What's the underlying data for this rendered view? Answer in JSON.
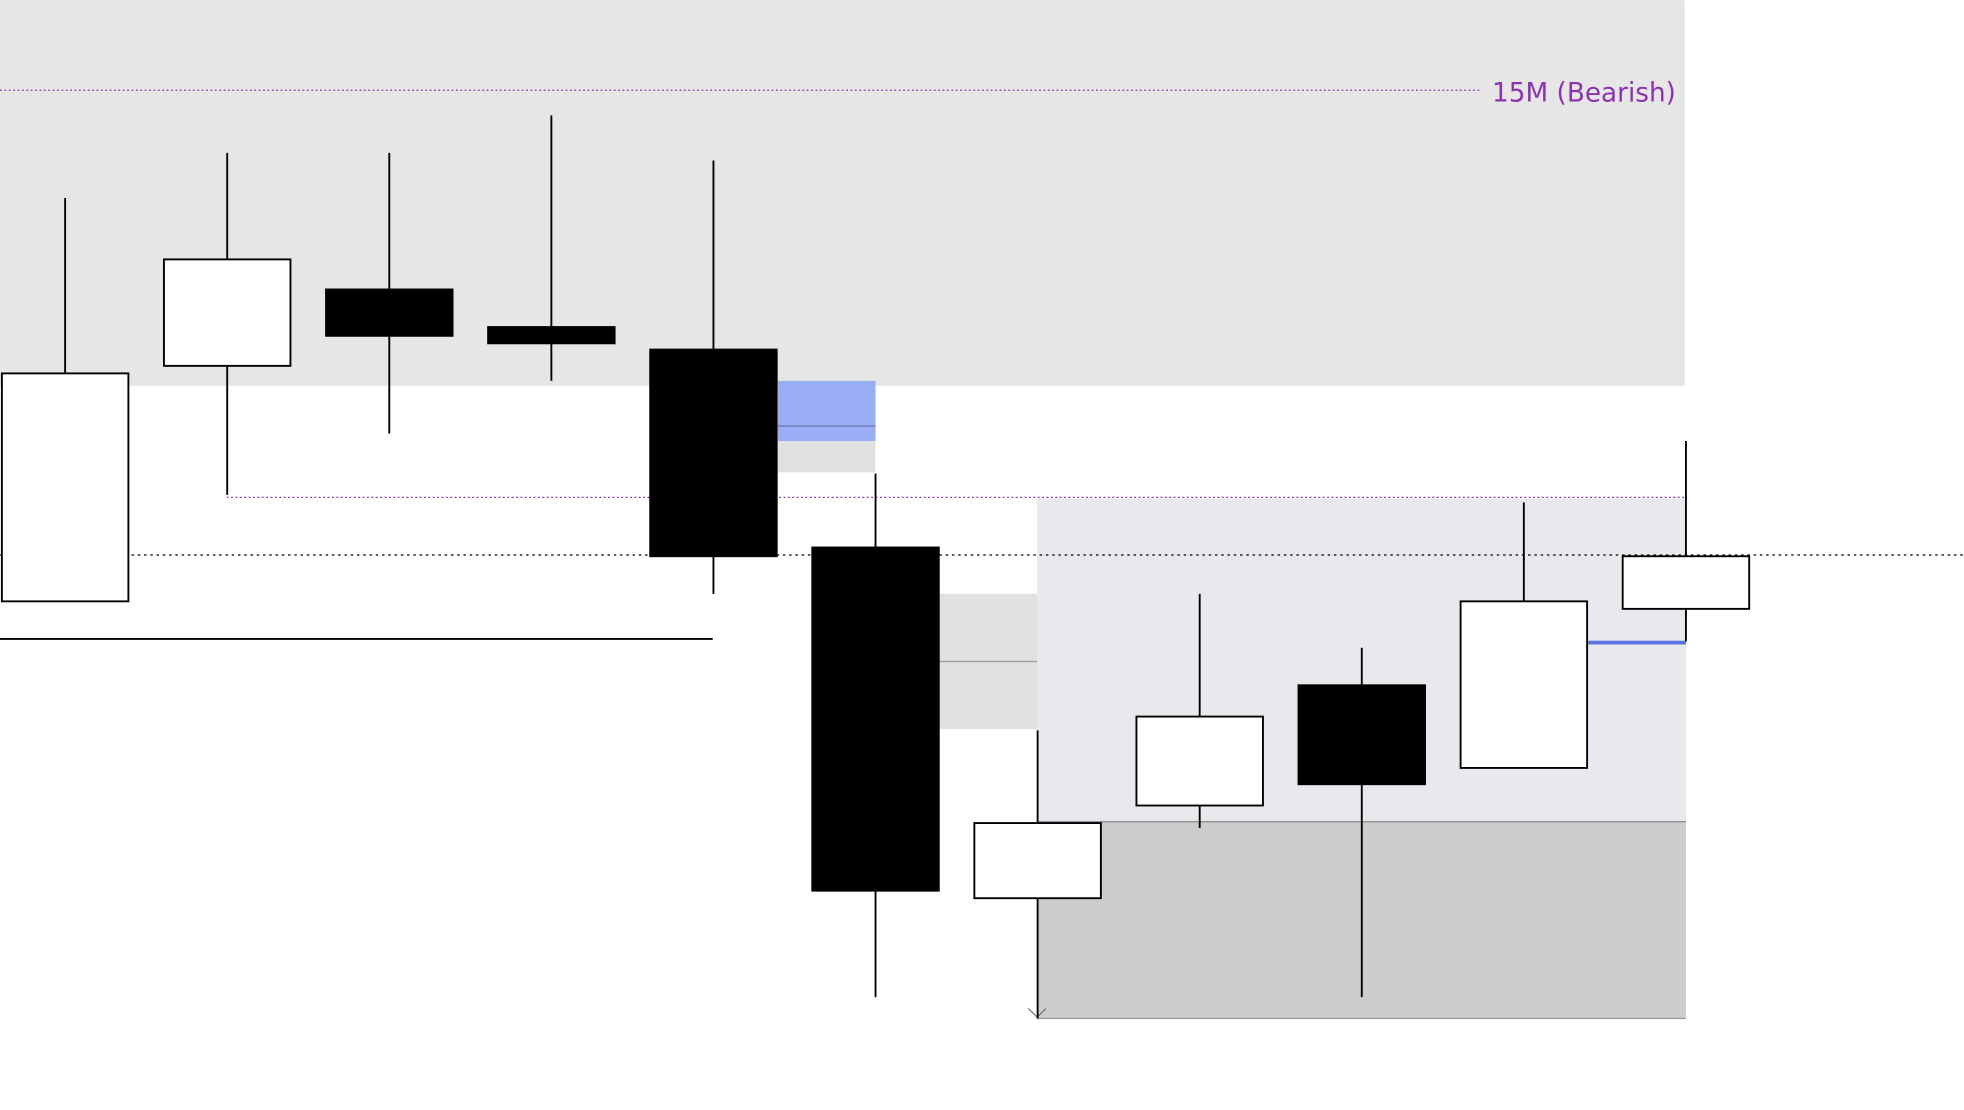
{
  "chart_data": {
    "type": "candlestick",
    "annotation": "15M (Bearish)",
    "ylim": [
      0,
      886
    ],
    "up_color": "#ffffff",
    "down_color": "#000000",
    "candles": [
      {
        "open": 406,
        "high": 728,
        "low": 406,
        "close": 588
      },
      {
        "open": 594,
        "high": 764,
        "low": 491,
        "close": 679
      },
      {
        "open": 655,
        "high": 764,
        "low": 540,
        "close": 618
      },
      {
        "open": 625,
        "high": 794,
        "low": 582,
        "close": 612
      },
      {
        "open": 607,
        "high": 758,
        "low": 412,
        "close": 442
      },
      {
        "open": 449,
        "high": 508,
        "low": 90,
        "close": 175
      },
      {
        "open": 169,
        "high": 303,
        "low": 73,
        "close": 229
      },
      {
        "open": 243,
        "high": 412,
        "low": 225,
        "close": 314
      },
      {
        "open": 339,
        "high": 369,
        "low": 90,
        "close": 260
      },
      {
        "open": 273,
        "high": 485,
        "low": 273,
        "close": 406
      },
      {
        "open": 400,
        "high": 534,
        "low": 374,
        "close": 442
      }
    ]
  }
}
